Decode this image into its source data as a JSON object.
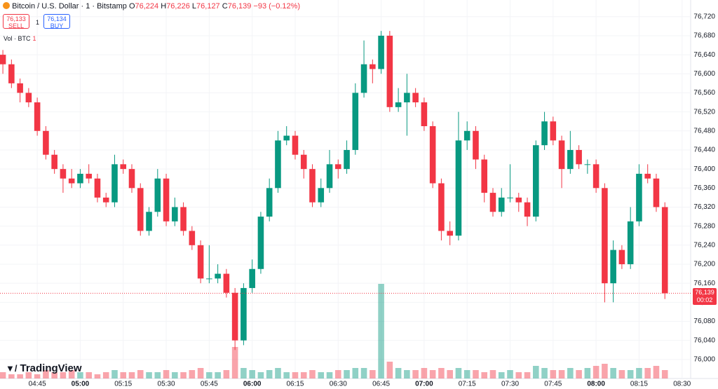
{
  "header": {
    "symbol": "Bitcoin / U.S. Dollar · 1 · Bitstamp",
    "o_label": "O",
    "o": "76,224",
    "h_label": "H",
    "h": "76,226",
    "l_label": "L",
    "l": "76,127",
    "c_label": "C",
    "c": "76,139",
    "change": "−93 (−0.12%)",
    "sell_price": "76,133",
    "sell": "SELL",
    "spread": "1",
    "buy_price": "76,134",
    "buy": "BUY",
    "volume_label": "Vol · BTC",
    "volume_value": "1",
    "brand": "TradingView"
  },
  "chart_data": {
    "type": "candlestick",
    "x": [
      "04:33",
      "04:36",
      "04:39",
      "04:42",
      "04:45",
      "04:48",
      "04:51",
      "04:54",
      "04:57",
      "05:00",
      "05:03",
      "05:06",
      "05:09",
      "05:12",
      "05:15",
      "05:18",
      "05:21",
      "05:24",
      "05:27",
      "05:30",
      "05:33",
      "05:36",
      "05:39",
      "05:42",
      "05:45",
      "05:48",
      "05:51",
      "05:54",
      "05:57",
      "06:00",
      "06:03",
      "06:06",
      "06:09",
      "06:12",
      "06:15",
      "06:18",
      "06:21",
      "06:24",
      "06:27",
      "06:30",
      "06:33",
      "06:36",
      "06:39",
      "06:42",
      "06:45",
      "06:48",
      "06:51",
      "06:54",
      "06:57",
      "07:00",
      "07:03",
      "07:06",
      "07:09",
      "07:12",
      "07:15",
      "07:18",
      "07:21",
      "07:24",
      "07:27",
      "07:30",
      "07:33",
      "07:36",
      "07:39",
      "07:42",
      "07:45",
      "07:48",
      "07:51",
      "07:54",
      "07:57",
      "08:00",
      "08:03",
      "08:06",
      "08:09",
      "08:12",
      "08:15",
      "08:18",
      "08:21",
      "08:24"
    ],
    "open": [
      76640,
      76620,
      76580,
      76560,
      76540,
      76480,
      76430,
      76400,
      76380,
      76370,
      76390,
      76380,
      76340,
      76330,
      76410,
      76400,
      76360,
      76270,
      76310,
      76380,
      76290,
      76320,
      76270,
      76240,
      76170,
      76170,
      76180,
      76140,
      76040,
      76150,
      76190,
      76300,
      76360,
      76460,
      76470,
      76430,
      76400,
      76330,
      76360,
      76410,
      76400,
      76440,
      76560,
      76620,
      76610,
      76680,
      76530,
      76540,
      76560,
      76540,
      76490,
      76370,
      76270,
      76260,
      76460,
      76480,
      76420,
      76350,
      76310,
      76340,
      76340,
      76330,
      76300,
      76450,
      76500,
      76460,
      76400,
      76440,
      76410,
      76410,
      76360,
      76160,
      76230,
      76200,
      76290,
      76390,
      76380,
      76320
    ],
    "high": [
      76650,
      76630,
      76590,
      76570,
      76550,
      76490,
      76440,
      76410,
      76400,
      76400,
      76410,
      76390,
      76350,
      76430,
      76420,
      76410,
      76370,
      76320,
      76400,
      76390,
      76340,
      76330,
      76280,
      76250,
      76240,
      76200,
      76190,
      76150,
      76160,
      76210,
      76310,
      76380,
      76480,
      76490,
      76480,
      76440,
      76410,
      76380,
      76440,
      76420,
      76460,
      76580,
      76670,
      76630,
      76690,
      76690,
      76570,
      76600,
      76570,
      76550,
      76500,
      76380,
      76290,
      76520,
      76500,
      76490,
      76430,
      76360,
      76360,
      76410,
      76350,
      76340,
      76460,
      76520,
      76510,
      76470,
      76480,
      76450,
      76420,
      76420,
      76370,
      76250,
      76240,
      76320,
      76410,
      76410,
      76390,
      76330
    ],
    "low": [
      76600,
      76570,
      76540,
      76530,
      76470,
      76420,
      76390,
      76350,
      76360,
      76360,
      76370,
      76330,
      76320,
      76320,
      76390,
      76350,
      76260,
      76260,
      76300,
      76280,
      76280,
      76260,
      76230,
      76160,
      76160,
      76160,
      76130,
      76020,
      76030,
      76140,
      76180,
      76290,
      76350,
      76450,
      76420,
      76380,
      76320,
      76320,
      76350,
      76380,
      76390,
      76430,
      76550,
      76580,
      76600,
      76520,
      76520,
      76470,
      76530,
      76480,
      76360,
      76250,
      76240,
      76250,
      76440,
      76400,
      76330,
      76300,
      76300,
      76330,
      76310,
      76280,
      76290,
      76440,
      76450,
      76360,
      76390,
      76400,
      76390,
      76350,
      76120,
      76120,
      76190,
      76190,
      76280,
      76370,
      76310,
      76127
    ],
    "close": [
      76620,
      76580,
      76560,
      76540,
      76480,
      76430,
      76400,
      76380,
      76370,
      76390,
      76380,
      76340,
      76330,
      76410,
      76400,
      76360,
      76270,
      76310,
      76380,
      76290,
      76320,
      76270,
      76240,
      76170,
      76170,
      76180,
      76140,
      76040,
      76150,
      76190,
      76300,
      76360,
      76460,
      76470,
      76430,
      76400,
      76330,
      76360,
      76410,
      76400,
      76440,
      76560,
      76620,
      76610,
      76680,
      76530,
      76540,
      76560,
      76540,
      76490,
      76370,
      76270,
      76260,
      76460,
      76480,
      76420,
      76350,
      76310,
      76340,
      76340,
      76330,
      76300,
      76450,
      76500,
      76460,
      76400,
      76440,
      76410,
      76410,
      76360,
      76160,
      76230,
      76200,
      76290,
      76390,
      76380,
      76320,
      76139
    ],
    "volume": [
      3,
      2,
      2,
      3,
      2,
      4,
      3,
      3,
      4,
      3,
      3,
      2,
      3,
      4,
      3,
      3,
      4,
      3,
      3,
      4,
      3,
      3,
      4,
      5,
      3,
      3,
      4,
      15,
      5,
      4,
      3,
      4,
      5,
      3,
      3,
      3,
      4,
      3,
      3,
      4,
      4,
      5,
      5,
      4,
      45,
      8,
      5,
      4,
      4,
      5,
      4,
      5,
      4,
      5,
      4,
      4,
      3,
      4,
      3,
      4,
      3,
      3,
      6,
      5,
      4,
      4,
      5,
      4,
      5,
      6,
      7,
      5,
      4,
      4,
      5,
      5,
      6,
      4
    ],
    "up_color": "#089981",
    "down_color": "#f23645",
    "ylim": [
      75960,
      76755
    ],
    "yticks": [
      {
        "value": 76000,
        "label": "76,000"
      },
      {
        "value": 76040,
        "label": "76,040"
      },
      {
        "value": 76080,
        "label": "76,080"
      },
      {
        "value": 76120,
        "label": "76,120"
      },
      {
        "value": 76160,
        "label": "76,160"
      },
      {
        "value": 76200,
        "label": "76,200"
      },
      {
        "value": 76240,
        "label": "76,240"
      },
      {
        "value": 76280,
        "label": "76,280"
      },
      {
        "value": 76320,
        "label": "76,320"
      },
      {
        "value": 76360,
        "label": "76,360"
      },
      {
        "value": 76400,
        "label": "76,400"
      },
      {
        "value": 76440,
        "label": "76,440"
      },
      {
        "value": 76480,
        "label": "76,480"
      },
      {
        "value": 76520,
        "label": "76,520"
      },
      {
        "value": 76560,
        "label": "76,560"
      },
      {
        "value": 76600,
        "label": "76,600"
      },
      {
        "value": 76640,
        "label": "76,640"
      },
      {
        "value": 76680,
        "label": "76,680"
      },
      {
        "value": 76720,
        "label": "76,720"
      }
    ],
    "xlim": [
      "04:32",
      "08:33"
    ],
    "xticks": [
      "04:45",
      "05:00",
      "05:15",
      "05:30",
      "05:45",
      "06:00",
      "06:15",
      "06:30",
      "06:45",
      "07:00",
      "07:15",
      "07:30",
      "07:45",
      "08:00",
      "08:15",
      "08:30"
    ],
    "last_price": {
      "value": 76139,
      "label": "76,139",
      "countdown": "00:02"
    },
    "grid": true
  }
}
